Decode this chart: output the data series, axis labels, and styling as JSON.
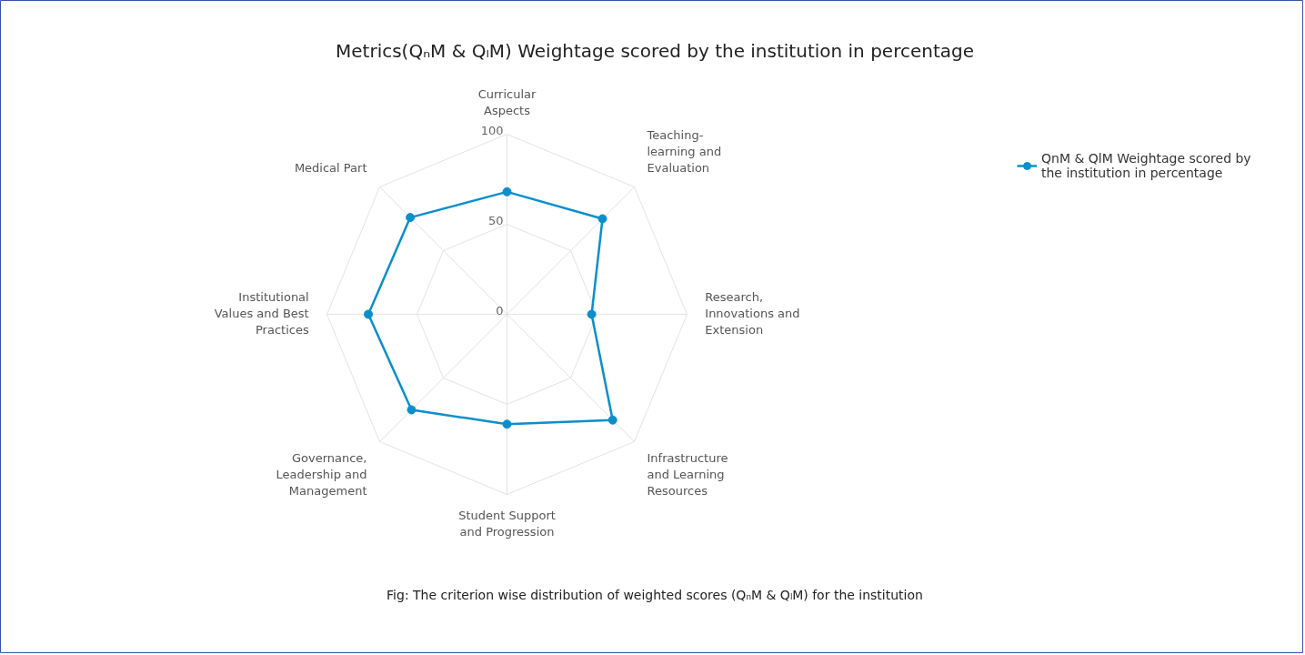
{
  "chart_data": {
    "type": "radar",
    "title": "Metrics(QₙM & QₗM) Weightage scored by the institution in percentage",
    "categories": [
      "Curricular Aspects",
      "Teaching-learning and Evaluation",
      "Research, Innovations and Extension",
      "Infrastructure and Learning Resources",
      "Student Support and Progression",
      "Governance, Leadership and Management",
      "Institutional Values and Best Practices",
      "Medical Part"
    ],
    "series": [
      {
        "name": "QnM & QlM Weightage scored by the institution in percentage",
        "color": "#0a8fcc",
        "values": [
          68,
          75,
          47,
          83,
          61,
          75,
          77,
          76
        ]
      }
    ],
    "ylim": [
      0,
      100
    ],
    "yticks": [
      0,
      50,
      100
    ],
    "grid": true,
    "legend": "top right",
    "marker": "circle",
    "line_style": "solid",
    "annotations": [
      "Fig: The criterion wise distribution of weighted scores (QₙM & QₗM) for the institution"
    ]
  }
}
